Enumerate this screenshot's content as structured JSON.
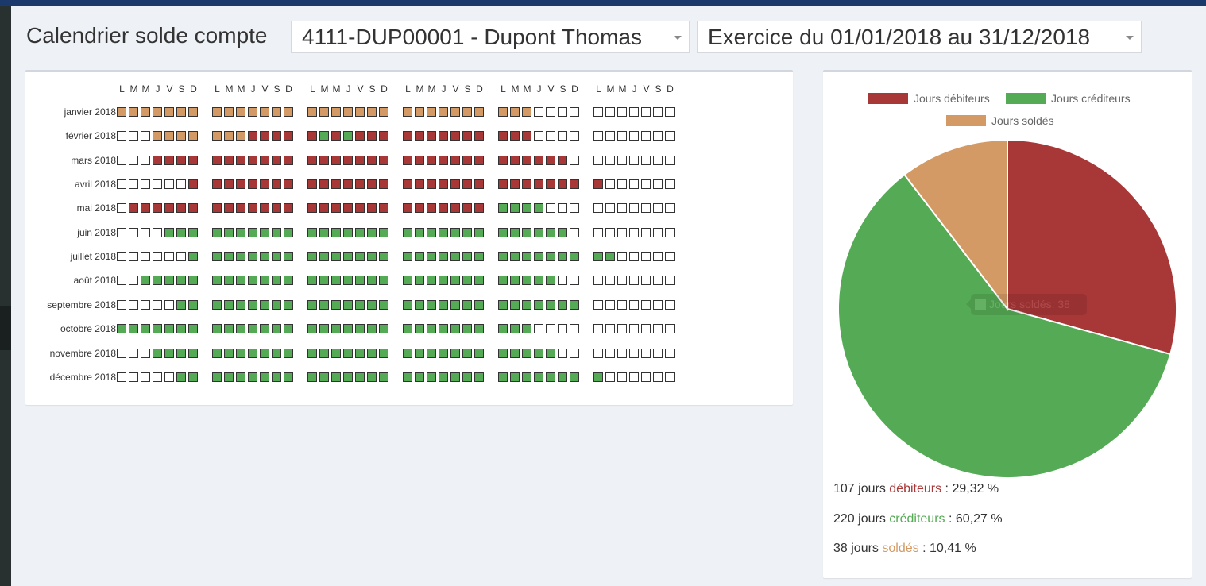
{
  "page": {
    "title": "Calendrier solde compte",
    "account_select": "4111-DUP00001 - Dupont Thomas",
    "period_select": "Exercice du 01/01/2018 au 31/12/2018"
  },
  "colors": {
    "debit": "#a83838",
    "credit": "#55aa55",
    "solde": "#d49a65",
    "empty": "#ffffff"
  },
  "calendar": {
    "day_letters": [
      "L",
      "M",
      "M",
      "J",
      "V",
      "S",
      "D"
    ],
    "legend_codes": {
      "0": "empty",
      "s": "solde",
      "d": "débiteur",
      "c": "créditeur"
    },
    "months": [
      {
        "label": "janvier 2018",
        "weeks": [
          "sssssss",
          "sssssss",
          "sssssss",
          "sssssss",
          "sss0000",
          "0000000"
        ]
      },
      {
        "label": "février 2018",
        "weeks": [
          "000ssss",
          "sssdddd",
          "dcdcddd",
          "ddddddd",
          "ddd0000",
          "0000000"
        ]
      },
      {
        "label": "mars 2018",
        "weeks": [
          "000dddd",
          "ddddddd",
          "ddddddd",
          "ddddddd",
          "dddddd0",
          "0000000"
        ]
      },
      {
        "label": "avril 2018",
        "weeks": [
          "000000d",
          "ddddddd",
          "ddddddd",
          "ddddddd",
          "ddddddd",
          "d000000"
        ]
      },
      {
        "label": "mai 2018",
        "weeks": [
          "0dddddd",
          "ddddddd",
          "ddddddd",
          "ddddddd",
          "cccc000",
          "0000000"
        ]
      },
      {
        "label": "juin 2018",
        "weeks": [
          "0000ccc",
          "ccccccc",
          "ccccccc",
          "ccccccc",
          "cccccc0",
          "0000000"
        ]
      },
      {
        "label": "juillet 2018",
        "weeks": [
          "000000c",
          "ccccccc",
          "ccccccc",
          "ccccccc",
          "ccccccc",
          "cc00000"
        ]
      },
      {
        "label": "août 2018",
        "weeks": [
          "00ccccc",
          "ccccccc",
          "ccccccc",
          "ccccccc",
          "ccccc00",
          "0000000"
        ]
      },
      {
        "label": "septembre 2018",
        "weeks": [
          "00000cc",
          "ccccccc",
          "ccccccc",
          "ccccccc",
          "ccccccc",
          "0000000"
        ]
      },
      {
        "label": "octobre 2018",
        "weeks": [
          "ccccccc",
          "ccccccc",
          "ccccccc",
          "ccccccc",
          "ccc0000",
          "0000000"
        ]
      },
      {
        "label": "novembre 2018",
        "weeks": [
          "000cccc",
          "ccccccc",
          "ccccccc",
          "ccccccc",
          "ccccc00",
          "0000000"
        ]
      },
      {
        "label": "décembre 2018",
        "weeks": [
          "00000cc",
          "ccccccc",
          "ccccccc",
          "ccccccc",
          "ccccccc",
          "c000000"
        ]
      }
    ]
  },
  "chart_data": {
    "type": "pie",
    "title": "",
    "legend_placement": "top",
    "series": [
      {
        "name": "Jours débiteurs",
        "value": 107,
        "color": "#a83838"
      },
      {
        "name": "Jours créditeurs",
        "value": 220,
        "color": "#55aa55"
      },
      {
        "name": "Jours soldés",
        "value": 38,
        "color": "#d49a65"
      }
    ],
    "tooltip": "Jours soldés: 38"
  },
  "summary": [
    {
      "count": "107 jours",
      "word": "débiteurs",
      "rest": " : 29,32 %",
      "color": "#a83838"
    },
    {
      "count": "220 jours",
      "word": "créditeurs",
      "rest": " : 60,27 %",
      "color": "#55aa55"
    },
    {
      "count": "38 jours",
      "word": "soldés",
      "rest": " : 10,41 %",
      "color": "#d49a65"
    }
  ]
}
